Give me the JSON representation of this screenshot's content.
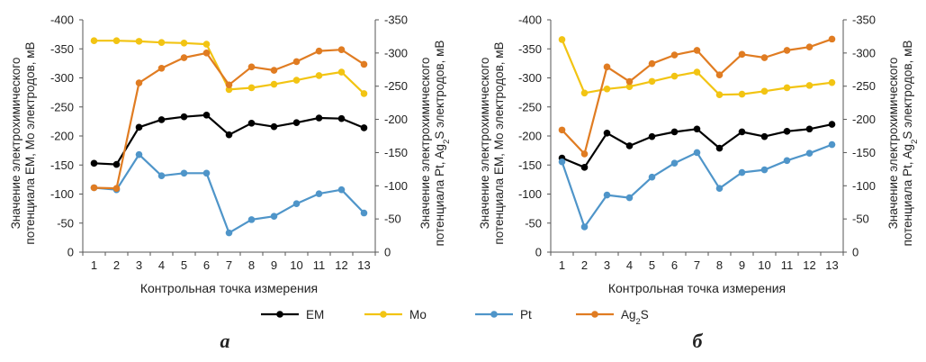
{
  "chart_data": [
    {
      "type": "line",
      "panel_label": "a",
      "x": [
        1,
        2,
        3,
        4,
        5,
        6,
        7,
        8,
        9,
        10,
        11,
        12,
        13
      ],
      "xlabel": "Контрольная точка измерения",
      "ylabel_left": [
        "Значение электрохимического",
        "потенциала ЕМ, Мо электродов, мВ"
      ],
      "ylabel_right": [
        "Значение электрохимического",
        "потенциала Pt, Ag2S электродов, мВ"
      ],
      "ylim_left": [
        0,
        -400
      ],
      "ylim_right": [
        0,
        -350
      ],
      "yticks_left": [
        "0",
        "-50",
        "-100",
        "-150",
        "-200",
        "-250",
        "-300",
        "-350",
        "-400"
      ],
      "yticks_right": [
        "0",
        "-50",
        "-100",
        "-150",
        "-200",
        "-250",
        "-300",
        "-350"
      ],
      "series": [
        {
          "name": "ЕМ",
          "axis": "left",
          "color": "#000000",
          "values": [
            -153,
            -151,
            -215,
            -228,
            -233,
            -236,
            -202,
            -222,
            -216,
            -223,
            -231,
            -230,
            -214
          ]
        },
        {
          "name": "Мо",
          "axis": "left",
          "color": "#f2c413",
          "values": [
            -364,
            -364,
            -363,
            -361,
            -360,
            -358,
            -280,
            -283,
            -289,
            -296,
            -304,
            -310,
            -273
          ]
        },
        {
          "name": "Pt",
          "axis": "right",
          "color": "#4f95c9",
          "values": [
            -97,
            -94,
            -147,
            -115,
            -119,
            -119,
            -29,
            -49,
            -54,
            -73,
            -88,
            -94,
            -59
          ]
        },
        {
          "name": "Ag2S",
          "axis": "right",
          "color": "#e07c22",
          "values": [
            -97,
            -96,
            -255,
            -277,
            -293,
            -300,
            -252,
            -279,
            -274,
            -287,
            -303,
            -305,
            -283
          ]
        }
      ]
    },
    {
      "type": "line",
      "panel_label": "б",
      "x": [
        1,
        2,
        3,
        4,
        5,
        6,
        7,
        8,
        9,
        10,
        11,
        12,
        13
      ],
      "xlabel": "Контрольная точка измерения",
      "ylabel_left": [
        "Значение электрохимического",
        "потенциала ЕМ, Мо электродов, мВ"
      ],
      "ylabel_right": [
        "Значение электрохимического",
        "потенциала Pt, Ag2S электродов, мВ"
      ],
      "ylim_left": [
        0,
        -400
      ],
      "ylim_right": [
        0,
        -350
      ],
      "yticks_left": [
        "0",
        "-50",
        "-100",
        "-150",
        "-200",
        "-250",
        "-300",
        "-350",
        "-400"
      ],
      "yticks_right": [
        "0",
        "-50",
        "-100",
        "-150",
        "-200",
        "-250",
        "-300",
        "-350"
      ],
      "series": [
        {
          "name": "ЕМ",
          "axis": "left",
          "color": "#000000",
          "values": [
            -162,
            -146,
            -205,
            -183,
            -199,
            -207,
            -212,
            -179,
            -207,
            -199,
            -208,
            -212,
            -220
          ]
        },
        {
          "name": "Мо",
          "axis": "left",
          "color": "#f2c413",
          "values": [
            -366,
            -274,
            -281,
            -285,
            -294,
            -303,
            -310,
            -271,
            -272,
            -277,
            -283,
            -287,
            -292
          ]
        },
        {
          "name": "Pt",
          "axis": "right",
          "color": "#4f95c9",
          "values": [
            -136,
            -38,
            -86,
            -82,
            -113,
            -134,
            -150,
            -96,
            -120,
            -124,
            -138,
            -149,
            -162
          ]
        },
        {
          "name": "Ag2S",
          "axis": "right",
          "color": "#e07c22",
          "values": [
            -184,
            -148,
            -279,
            -257,
            -284,
            -297,
            -304,
            -267,
            -298,
            -293,
            -304,
            -309,
            -321
          ]
        }
      ]
    }
  ],
  "legend": [
    {
      "name": "ЕМ",
      "color": "#000000"
    },
    {
      "name": "Мо",
      "color": "#f2c413"
    },
    {
      "name": "Pt",
      "color": "#4f95c9"
    },
    {
      "name": "Ag2S",
      "color": "#e07c22"
    }
  ],
  "legend_placement": "bottom-center"
}
